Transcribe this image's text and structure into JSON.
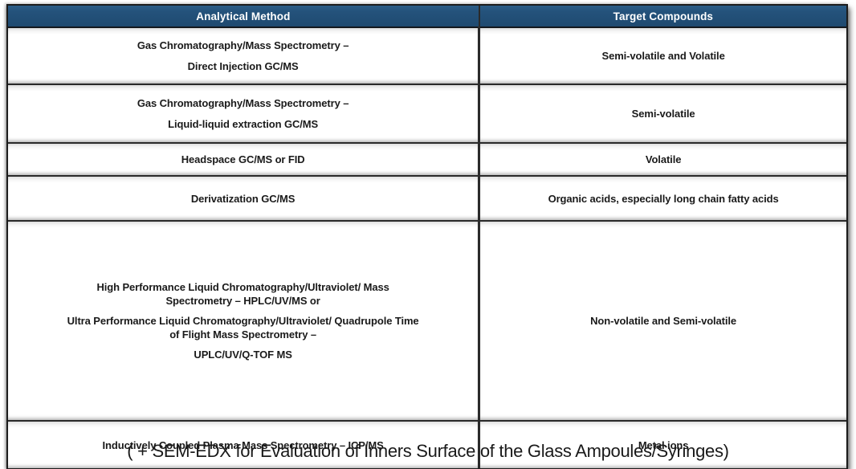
{
  "table": {
    "columns": [
      {
        "label": "Analytical Method"
      },
      {
        "label": "Target Compounds"
      }
    ],
    "rows": [
      {
        "method_paragraphs": [
          [
            "Gas Chromatography/Mass Spectrometry –"
          ],
          [
            "Direct Injection GC/MS"
          ]
        ],
        "target": "Semi-volatile and Volatile"
      },
      {
        "method_paragraphs": [
          [
            "Gas Chromatography/Mass Spectrometry –"
          ],
          [
            "Liquid-liquid extraction GC/MS"
          ]
        ],
        "target": "Semi-volatile"
      },
      {
        "method_paragraphs": [
          [
            "Headspace GC/MS or FID"
          ]
        ],
        "target": "Volatile"
      },
      {
        "method_paragraphs": [
          [
            "Derivatization GC/MS"
          ]
        ],
        "target": "Organic acids, especially long chain fatty acids"
      },
      {
        "method_paragraphs": [
          [
            "High Performance Liquid Chromatography/Ultraviolet/ Mass",
            "Spectrometry – HPLC/UV/MS or"
          ],
          [
            "Ultra Performance Liquid Chromatography/Ultraviolet/ Quadrupole Time",
            "of Flight Mass Spectrometry –"
          ],
          [
            "UPLC/UV/Q-TOF MS"
          ]
        ],
        "target": "Non-volatile and Semi-volatile"
      },
      {
        "method_paragraphs": [
          [
            "Inductively Coupled Plasma Mass Spectrometry – ICP/MS"
          ]
        ],
        "target": "Metal ions"
      }
    ]
  },
  "footer": {
    "note": "( + SEM-EDX for Evaluation of Inners Surface of the Glass Ampoules/Syringes)"
  },
  "colors": {
    "header_bg": "#24527B",
    "header_text": "#FFFFFF",
    "border": "#2A2A2A",
    "body_text": "#1A1A1A"
  }
}
